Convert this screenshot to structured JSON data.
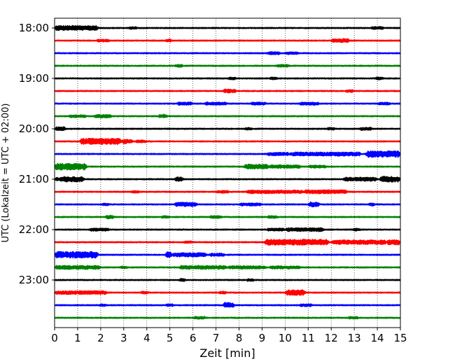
{
  "chart_data": {
    "type": "line",
    "title": "",
    "xlabel": "Zeit  [min]",
    "ylabel": "UTC (Lokalzeit = UTC + 02:00)",
    "xlim": [
      0,
      15
    ],
    "x_ticks": [
      "0",
      "1",
      "2",
      "3",
      "4",
      "5",
      "6",
      "7",
      "8",
      "9",
      "10",
      "11",
      "12",
      "13",
      "14",
      "15"
    ],
    "y_tick_labels": [
      "18:00",
      "19:00",
      "20:00",
      "21:00",
      "22:00",
      "23:00"
    ],
    "trace_interval_min": 15,
    "grid": "vertical dotted lines at each minute",
    "color_cycle": [
      "#000000",
      "#ff0000",
      "#0000ff",
      "#008000"
    ],
    "rows": [
      {
        "start": "18:00",
        "bursts": [
          [
            0,
            1.9,
            2.2
          ],
          [
            3.2,
            3.6,
            1.3
          ],
          [
            13.7,
            14.3,
            1.3
          ]
        ]
      },
      {
        "start": "18:15",
        "bursts": [
          [
            4.8,
            5.1,
            1.4
          ],
          [
            12.0,
            12.8,
            1.8
          ],
          [
            1.8,
            2.4,
            1.3
          ]
        ]
      },
      {
        "start": "18:30",
        "bursts": [
          [
            9.2,
            9.8,
            1.4
          ],
          [
            10.0,
            10.6,
            1.3
          ]
        ]
      },
      {
        "start": "18:45",
        "bursts": [
          [
            5.2,
            5.6,
            1.3
          ],
          [
            9.6,
            10.2,
            1.2
          ]
        ]
      },
      {
        "start": "19:00",
        "bursts": [
          [
            7.5,
            7.9,
            1.3
          ],
          [
            9.3,
            9.7,
            1.2
          ],
          [
            13.9,
            14.3,
            1.3
          ]
        ]
      },
      {
        "start": "19:15",
        "bursts": [
          [
            7.3,
            7.9,
            1.8
          ],
          [
            12.6,
            13.0,
            1.3
          ]
        ]
      },
      {
        "start": "19:30",
        "bursts": [
          [
            5.3,
            6.0,
            1.5
          ],
          [
            6.5,
            7.5,
            1.4
          ],
          [
            8.5,
            9.2,
            1.4
          ],
          [
            10.6,
            11.5,
            1.4
          ],
          [
            14.0,
            14.6,
            1.2
          ]
        ]
      },
      {
        "start": "19:45",
        "bursts": [
          [
            0.6,
            1.4,
            1.3
          ],
          [
            1.7,
            2.5,
            1.6
          ],
          [
            4.5,
            4.9,
            1.7
          ]
        ]
      },
      {
        "start": "20:00",
        "bursts": [
          [
            0.0,
            0.5,
            1.8
          ],
          [
            13.2,
            13.8,
            1.4
          ],
          [
            8.2,
            8.6,
            1.2
          ],
          [
            11.8,
            12.2,
            1.2
          ]
        ]
      },
      {
        "start": "20:15",
        "bursts": [
          [
            1.1,
            2.9,
            2.8
          ],
          [
            2.9,
            3.4,
            2.0
          ],
          [
            3.5,
            4.0,
            1.3
          ]
        ]
      },
      {
        "start": "20:30",
        "bursts": [
          [
            9.2,
            10.2,
            1.5
          ],
          [
            10.2,
            13.3,
            1.8
          ],
          [
            13.5,
            15.0,
            2.9
          ]
        ]
      },
      {
        "start": "20:45",
        "bursts": [
          [
            0.0,
            1.4,
            3.0
          ],
          [
            8.2,
            9.3,
            2.2
          ],
          [
            9.3,
            10.7,
            1.6
          ],
          [
            11.0,
            11.8,
            1.3
          ]
        ]
      },
      {
        "start": "21:00",
        "bursts": [
          [
            0.2,
            1.3,
            2.4
          ],
          [
            5.2,
            5.6,
            2.0
          ],
          [
            12.5,
            14.0,
            1.8
          ],
          [
            14.1,
            15.0,
            2.6
          ],
          [
            0.0,
            0.3,
            1.5
          ]
        ]
      },
      {
        "start": "21:15",
        "bursts": [
          [
            8.3,
            10.8,
            1.6
          ],
          [
            10.8,
            12.7,
            1.8
          ],
          [
            7.0,
            7.6,
            1.3
          ],
          [
            3.3,
            3.7,
            1.2
          ]
        ]
      },
      {
        "start": "21:30",
        "bursts": [
          [
            5.2,
            6.2,
            2.0
          ],
          [
            8.0,
            9.0,
            1.4
          ],
          [
            11.0,
            11.5,
            2.2
          ],
          [
            13.6,
            13.9,
            1.5
          ],
          [
            2.0,
            2.4,
            1.2
          ]
        ]
      },
      {
        "start": "21:45",
        "bursts": [
          [
            2.2,
            2.6,
            1.8
          ],
          [
            4.6,
            5.0,
            1.2
          ],
          [
            6.7,
            7.3,
            1.3
          ],
          [
            9.2,
            9.7,
            1.3
          ]
        ]
      },
      {
        "start": "22:00",
        "bursts": [
          [
            1.5,
            2.4,
            1.4
          ],
          [
            9.2,
            10.0,
            1.4
          ],
          [
            10.0,
            11.7,
            1.7
          ],
          [
            12.9,
            13.3,
            1.3
          ]
        ]
      },
      {
        "start": "22:15",
        "bursts": [
          [
            9.1,
            11.9,
            2.7
          ],
          [
            12.0,
            14.4,
            2.0
          ],
          [
            14.4,
            15.0,
            2.5
          ],
          [
            5.6,
            6.0,
            1.2
          ]
        ]
      },
      {
        "start": "22:30",
        "bursts": [
          [
            0.0,
            1.9,
            3.0
          ],
          [
            4.8,
            5.1,
            2.7
          ],
          [
            5.1,
            6.6,
            1.9
          ],
          [
            6.7,
            7.4,
            1.5
          ]
        ]
      },
      {
        "start": "22:45",
        "bursts": [
          [
            0.0,
            2.0,
            1.8
          ],
          [
            5.4,
            7.5,
            1.7
          ],
          [
            7.5,
            9.2,
            1.5
          ],
          [
            9.3,
            10.7,
            1.4
          ],
          [
            2.8,
            3.2,
            1.2
          ]
        ]
      },
      {
        "start": "23:00",
        "bursts": [
          [
            5.4,
            5.7,
            1.4
          ],
          [
            8.3,
            8.7,
            1.2
          ]
        ]
      },
      {
        "start": "23:15",
        "bursts": [
          [
            0.0,
            2.3,
            1.7
          ],
          [
            10.0,
            10.9,
            2.5
          ],
          [
            7.1,
            7.5,
            1.3
          ],
          [
            3.7,
            4.1,
            1.2
          ]
        ]
      },
      {
        "start": "23:30",
        "bursts": [
          [
            7.3,
            7.8,
            2.4
          ],
          [
            4.8,
            5.2,
            1.3
          ],
          [
            10.6,
            11.2,
            1.3
          ],
          [
            1.9,
            2.3,
            1.2
          ]
        ]
      },
      {
        "start": "23:45",
        "bursts": [
          [
            6.0,
            6.6,
            1.2
          ],
          [
            12.7,
            13.2,
            1.2
          ]
        ]
      }
    ]
  }
}
